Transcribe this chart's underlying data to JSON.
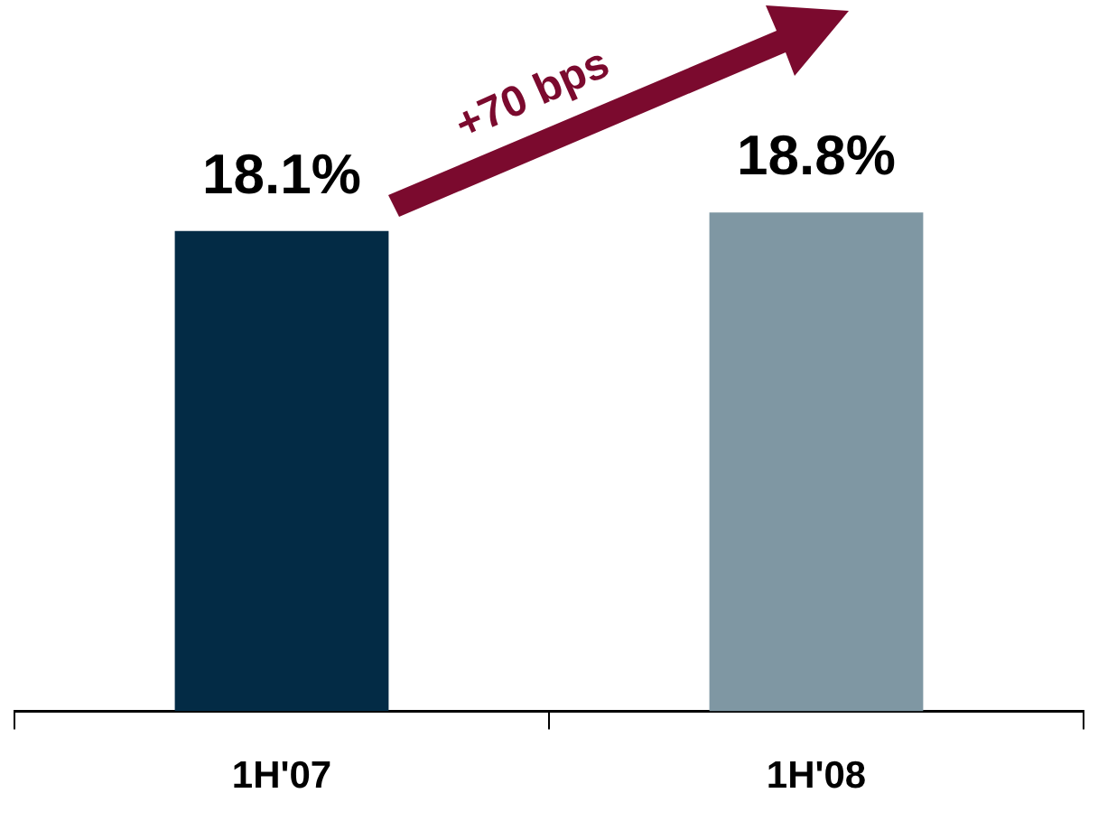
{
  "chart_data": {
    "type": "bar",
    "categories": [
      "1H'07",
      "1H'08"
    ],
    "values": [
      18.1,
      18.8
    ],
    "colors": [
      "#032b45",
      "#7f97a3"
    ],
    "tick_labels": "x",
    "grid": false,
    "legend": false,
    "value_labels": [
      "18.1%",
      "18.8%"
    ],
    "annotations": [
      "+70 bps"
    ]
  }
}
